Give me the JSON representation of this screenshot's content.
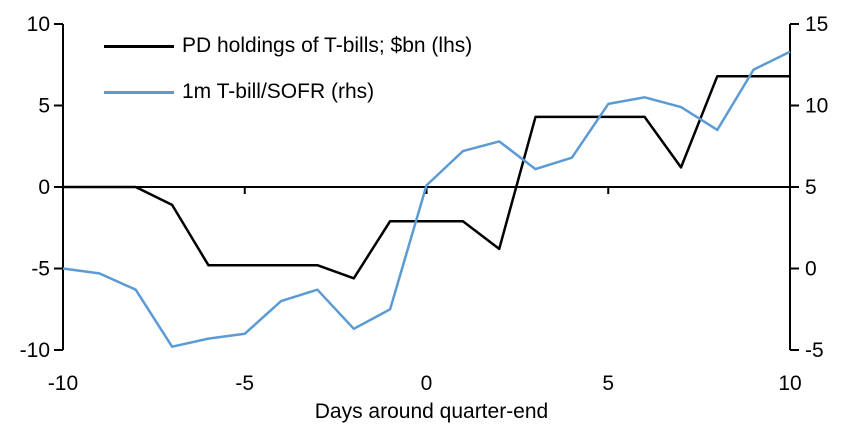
{
  "chart_data": {
    "type": "line",
    "title": "",
    "xlabel": "Days around quarter-end",
    "x": [
      -10,
      -9,
      -8,
      -7,
      -6,
      -5,
      -4,
      -3,
      -2,
      -1,
      0,
      1,
      2,
      3,
      4,
      5,
      6,
      7,
      8,
      9,
      10
    ],
    "series": [
      {
        "name": "PD holdings of T-bills; $bn (lhs)",
        "axis": "left",
        "color": "#000000",
        "values": [
          0,
          0,
          0,
          -1.1,
          -4.8,
          -4.8,
          -4.8,
          -4.8,
          -5.6,
          -2.1,
          -2.1,
          -2.1,
          -3.8,
          4.3,
          4.3,
          4.3,
          4.3,
          1.2,
          6.8,
          6.8,
          6.8
        ]
      },
      {
        "name": "1m T-bill/SOFR (rhs)",
        "axis": "right",
        "color": "#5B9BD5",
        "values": [
          0.0,
          -0.3,
          -1.3,
          -4.8,
          -4.3,
          -4.0,
          -2.0,
          -1.3,
          -3.7,
          -2.5,
          5.1,
          7.2,
          7.8,
          6.1,
          6.8,
          10.1,
          10.5,
          9.9,
          8.5,
          12.2,
          13.3
        ]
      }
    ],
    "left_axis": {
      "min": -10,
      "max": 10,
      "ticks": [
        10,
        5,
        0,
        -5,
        -10
      ]
    },
    "right_axis": {
      "min": -5,
      "max": 15,
      "ticks": [
        15,
        10,
        5,
        0,
        -5
      ]
    },
    "x_ticks": [
      -10,
      -5,
      0,
      5,
      10
    ],
    "grid": "off",
    "legend_position": "top-left-inside",
    "axis_color": "#000000"
  },
  "legend": {
    "items": [
      {
        "label": "PD holdings of T-bills; $bn (lhs)"
      },
      {
        "label": "1m T-bill/SOFR (rhs)"
      }
    ]
  }
}
